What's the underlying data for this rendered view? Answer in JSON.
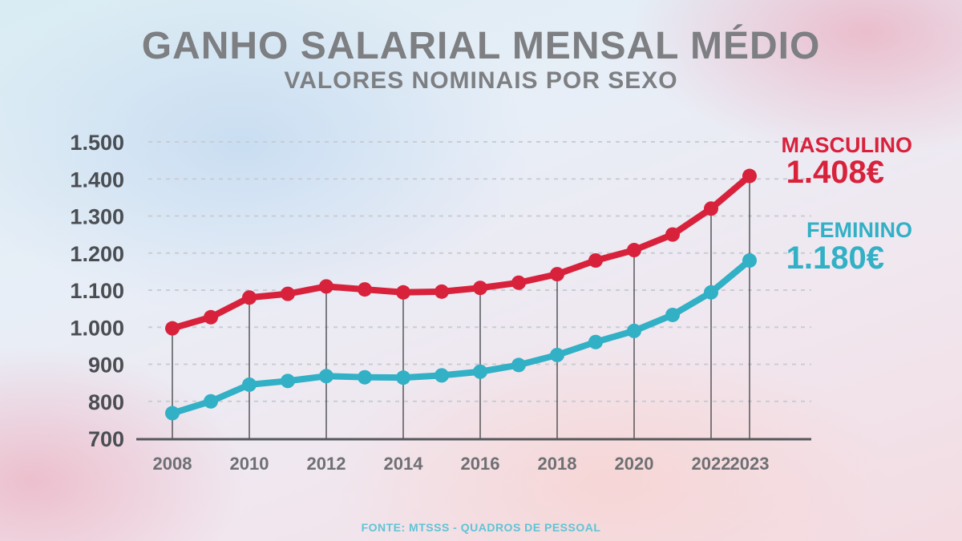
{
  "title": "GANHO SALARIAL MENSAL MÉDIO",
  "subtitle": "VALORES NOMINAIS POR SEXO",
  "source": "FONTE: MTSSS - QUADROS DE PESSOAL",
  "colors": {
    "masculino": "#d8223c",
    "feminino": "#31b0c6",
    "text": "#7d7f82",
    "axis": "#55585c"
  },
  "chart_data": {
    "type": "line",
    "title": "GANHO SALARIAL MENSAL MÉDIO",
    "subtitle": "VALORES NOMINAIS POR SEXO",
    "x": [
      2008,
      2009,
      2010,
      2011,
      2012,
      2013,
      2014,
      2015,
      2016,
      2017,
      2018,
      2019,
      2020,
      2021,
      2022,
      2023
    ],
    "x_tick_labels": [
      "2008",
      "2010",
      "2012",
      "2014",
      "2016",
      "2018",
      "2020",
      "2022",
      "2023"
    ],
    "y_tick_labels": [
      "1.500",
      "1.400",
      "1.300",
      "1.200",
      "1.100",
      "1.000",
      "900",
      "800",
      "700"
    ],
    "ylim": [
      700,
      1500
    ],
    "grid": true,
    "series": [
      {
        "name": "MASCULINO",
        "end_label": "1.408€",
        "color": "#d8223c",
        "values": [
          997,
          1027,
          1080,
          1090,
          1110,
          1102,
          1094,
          1096,
          1106,
          1120,
          1143,
          1180,
          1208,
          1250,
          1320,
          1408
        ]
      },
      {
        "name": "FEMININO",
        "end_label": "1.180€",
        "color": "#31b0c6",
        "values": [
          768,
          800,
          845,
          855,
          868,
          865,
          864,
          870,
          880,
          898,
          925,
          960,
          990,
          1033,
          1094,
          1180
        ]
      }
    ]
  }
}
